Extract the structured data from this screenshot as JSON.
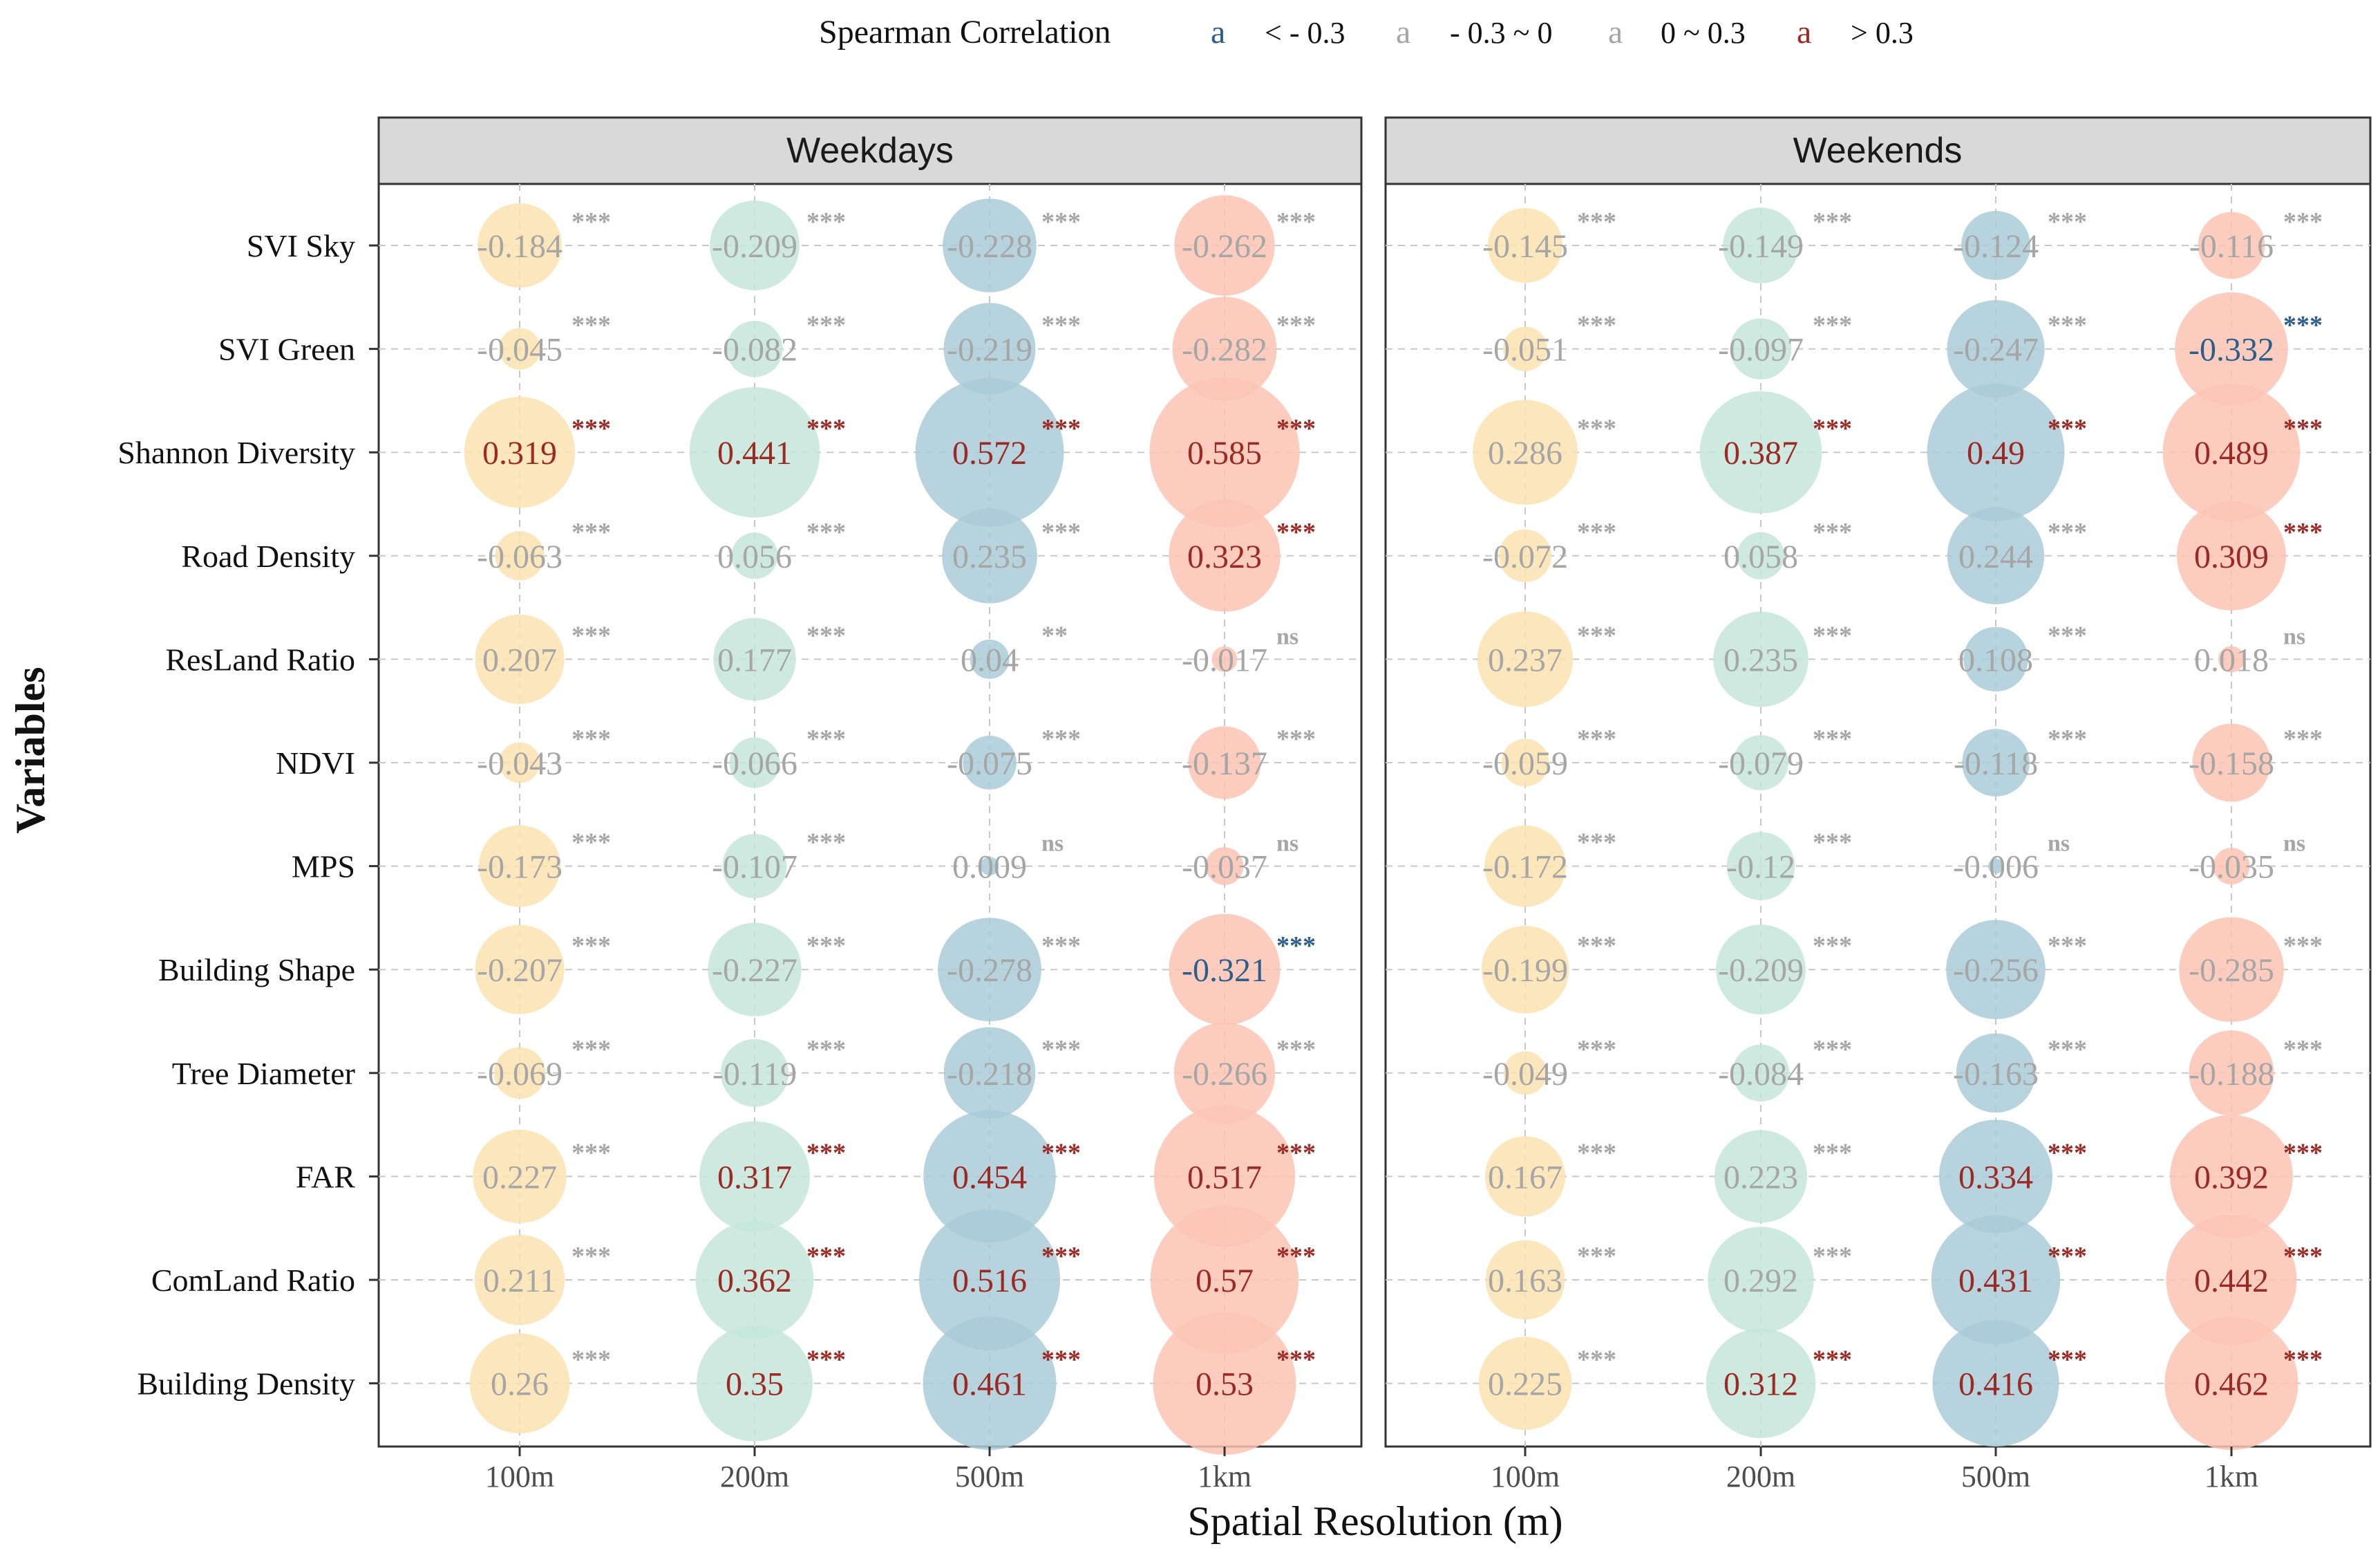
{
  "chart_data": {
    "type": "bubble",
    "legend": {
      "title": "Spearman Correlation",
      "items": [
        {
          "glyph": "a",
          "label": "< - 0.3",
          "color": "#2c5e8c"
        },
        {
          "glyph": "a",
          "label": "- 0.3 ~ 0",
          "color": "#a6a6a6"
        },
        {
          "glyph": "a",
          "label": "0 ~ 0.3",
          "color": "#a6a6a6"
        },
        {
          "glyph": "a",
          "label": "> 0.3",
          "color": "#9c2a24"
        }
      ]
    },
    "xlabel": "Spatial Resolution (m)",
    "ylabel": "Variables",
    "resolutions": [
      "100m",
      "200m",
      "500m",
      "1km"
    ],
    "variables": [
      "SVI Sky",
      "SVI Green",
      "Shannon Diversity",
      "Road Density",
      "ResLand Ratio",
      "NDVI",
      "MPS",
      "Building Shape",
      "Tree Diameter",
      "FAR",
      "ComLand Ratio",
      "Building Density"
    ],
    "bubble_colors": [
      "#fbe3b0",
      "#c6e6da",
      "#a9cbd8",
      "#fbc4b4"
    ],
    "text_colors": {
      "neg_strong": "#2c5e8c",
      "neutral": "#a6a6a6",
      "pos_strong": "#9c2a24"
    },
    "panels": [
      {
        "title": "Weekdays",
        "values": [
          [
            "-0.184",
            "-0.209",
            "-0.228",
            "-0.262"
          ],
          [
            "-0.045",
            "-0.082",
            "-0.219",
            "-0.282"
          ],
          [
            "0.319",
            "0.441",
            "0.572",
            "0.585"
          ],
          [
            "-0.063",
            "0.056",
            "0.235",
            "0.323"
          ],
          [
            "0.207",
            "0.177",
            "0.04",
            "-0.017"
          ],
          [
            "-0.043",
            "-0.066",
            "-0.075",
            "-0.137"
          ],
          [
            "-0.173",
            "-0.107",
            "0.009",
            "-0.037"
          ],
          [
            "-0.207",
            "-0.227",
            "-0.278",
            "-0.321"
          ],
          [
            "-0.069",
            "-0.119",
            "-0.218",
            "-0.266"
          ],
          [
            "0.227",
            "0.317",
            "0.454",
            "0.517"
          ],
          [
            "0.211",
            "0.362",
            "0.516",
            "0.57"
          ],
          [
            "0.26",
            "0.35",
            "0.461",
            "0.53"
          ]
        ],
        "significance": [
          [
            "***",
            "***",
            "***",
            "***"
          ],
          [
            "***",
            "***",
            "***",
            "***"
          ],
          [
            "***",
            "***",
            "***",
            "***"
          ],
          [
            "***",
            "***",
            "***",
            "***"
          ],
          [
            "***",
            "***",
            "**",
            "ns"
          ],
          [
            "***",
            "***",
            "***",
            "***"
          ],
          [
            "***",
            "***",
            "ns",
            "ns"
          ],
          [
            "***",
            "***",
            "***",
            "***"
          ],
          [
            "***",
            "***",
            "***",
            "***"
          ],
          [
            "***",
            "***",
            "***",
            "***"
          ],
          [
            "***",
            "***",
            "***",
            "***"
          ],
          [
            "***",
            "***",
            "***",
            "***"
          ]
        ]
      },
      {
        "title": "Weekends",
        "values": [
          [
            "-0.145",
            "-0.149",
            "-0.124",
            "-0.116"
          ],
          [
            "-0.051",
            "-0.097",
            "-0.247",
            "-0.332"
          ],
          [
            "0.286",
            "0.387",
            "0.49",
            "0.489"
          ],
          [
            "-0.072",
            "0.058",
            "0.244",
            "0.309"
          ],
          [
            "0.237",
            "0.235",
            "0.108",
            "0.018"
          ],
          [
            "-0.059",
            "-0.079",
            "-0.118",
            "-0.158"
          ],
          [
            "-0.172",
            "-0.12",
            "-0.006",
            "-0.035"
          ],
          [
            "-0.199",
            "-0.209",
            "-0.256",
            "-0.285"
          ],
          [
            "-0.049",
            "-0.084",
            "-0.163",
            "-0.188"
          ],
          [
            "0.167",
            "0.223",
            "0.334",
            "0.392"
          ],
          [
            "0.163",
            "0.292",
            "0.431",
            "0.442"
          ],
          [
            "0.225",
            "0.312",
            "0.416",
            "0.462"
          ]
        ],
        "significance": [
          [
            "***",
            "***",
            "***",
            "***"
          ],
          [
            "***",
            "***",
            "***",
            "***"
          ],
          [
            "***",
            "***",
            "***",
            "***"
          ],
          [
            "***",
            "***",
            "***",
            "***"
          ],
          [
            "***",
            "***",
            "***",
            "ns"
          ],
          [
            "***",
            "***",
            "***",
            "***"
          ],
          [
            "***",
            "***",
            "ns",
            "ns"
          ],
          [
            "***",
            "***",
            "***",
            "***"
          ],
          [
            "***",
            "***",
            "***",
            "***"
          ],
          [
            "***",
            "***",
            "***",
            "***"
          ],
          [
            "***",
            "***",
            "***",
            "***"
          ],
          [
            "***",
            "***",
            "***",
            "***"
          ]
        ]
      }
    ]
  }
}
